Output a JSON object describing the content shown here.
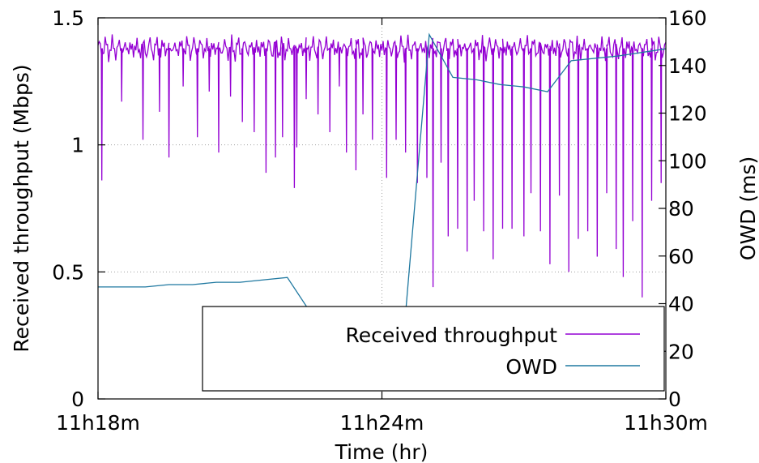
{
  "chart_data": {
    "type": "line",
    "xlabel": "Time (hr)",
    "ylabel_left": "Received throughput (Mbps)",
    "ylabel_right": "OWD (ms)",
    "x_ticks": [
      "11h18m",
      "11h24m",
      "11h30m"
    ],
    "x_range_minutes": [
      0,
      12
    ],
    "y_left_range": [
      0,
      1.5
    ],
    "y_left_ticks": [
      "0",
      "0.5",
      "1",
      "1.5"
    ],
    "y_right_range": [
      0,
      160
    ],
    "y_right_ticks": [
      "0",
      "20",
      "40",
      "60",
      "80",
      "100",
      "120",
      "140",
      "160"
    ],
    "grid": "dotted at y=0.5, y=1 and x=11h24m",
    "legend_placement": "bottom-right",
    "series": [
      {
        "name": "Received throughput",
        "color": "#9400D3",
        "axis": "left",
        "baseline": 1.38,
        "dips": [
          [
            0.08,
            0.86
          ],
          [
            0.5,
            1.17
          ],
          [
            0.95,
            1.02
          ],
          [
            1.3,
            1.13
          ],
          [
            1.5,
            0.95
          ],
          [
            1.8,
            1.23
          ],
          [
            2.1,
            1.03
          ],
          [
            2.35,
            1.21
          ],
          [
            2.55,
            0.97
          ],
          [
            2.8,
            1.19
          ],
          [
            3.05,
            1.09
          ],
          [
            3.3,
            1.05
          ],
          [
            3.55,
            0.89
          ],
          [
            3.75,
            0.95
          ],
          [
            3.9,
            1.03
          ],
          [
            4.15,
            0.83
          ],
          [
            4.2,
            0.99
          ],
          [
            4.4,
            1.18
          ],
          [
            4.65,
            1.12
          ],
          [
            4.9,
            1.05
          ],
          [
            5.1,
            1.23
          ],
          [
            5.25,
            0.97
          ],
          [
            5.45,
            0.9
          ],
          [
            5.6,
            1.12
          ],
          [
            5.8,
            1.02
          ],
          [
            6.1,
            0.87
          ],
          [
            6.3,
            1.02
          ],
          [
            6.5,
            0.97
          ],
          [
            6.75,
            0.85
          ],
          [
            6.95,
            0.87
          ],
          [
            7.08,
            0.44
          ],
          [
            7.25,
            0.93
          ],
          [
            7.4,
            0.64
          ],
          [
            7.6,
            0.67
          ],
          [
            7.8,
            0.58
          ],
          [
            7.95,
            0.78
          ],
          [
            8.15,
            0.66
          ],
          [
            8.35,
            0.55
          ],
          [
            8.55,
            0.67
          ],
          [
            8.75,
            0.67
          ],
          [
            9,
            0.64
          ],
          [
            9.15,
            0.81
          ],
          [
            9.35,
            0.66
          ],
          [
            9.55,
            0.53
          ],
          [
            9.75,
            0.8
          ],
          [
            9.95,
            0.5
          ],
          [
            10.15,
            0.63
          ],
          [
            10.35,
            0.66
          ],
          [
            10.55,
            0.56
          ],
          [
            10.75,
            0.81
          ],
          [
            10.95,
            0.59
          ],
          [
            11.1,
            0.48
          ],
          [
            11.3,
            0.7
          ],
          [
            11.5,
            0.4
          ],
          [
            11.7,
            0.78
          ],
          [
            11.9,
            0.85
          ]
        ]
      },
      {
        "name": "OWD",
        "color": "#1F78A0",
        "axis": "right",
        "points": [
          [
            0,
            47
          ],
          [
            1,
            47
          ],
          [
            1.5,
            48
          ],
          [
            2,
            48
          ],
          [
            2.5,
            49
          ],
          [
            3,
            49
          ],
          [
            3.5,
            50
          ],
          [
            4,
            51
          ],
          [
            4.5,
            36
          ],
          [
            5,
            36
          ],
          [
            6,
            36
          ],
          [
            6.5,
            36
          ],
          [
            7,
            153
          ],
          [
            7.5,
            135
          ],
          [
            8,
            134
          ],
          [
            8.5,
            132
          ],
          [
            9,
            131
          ],
          [
            9.5,
            129
          ],
          [
            10,
            142
          ],
          [
            11,
            144
          ],
          [
            12,
            147
          ]
        ]
      }
    ]
  }
}
